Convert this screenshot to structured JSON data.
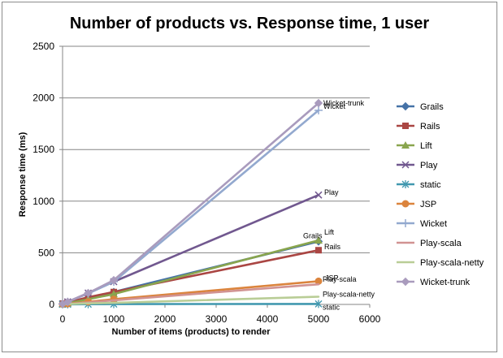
{
  "chart_data": {
    "type": "line",
    "title": "Number of products vs. Response time, 1 user",
    "xlabel": "Number of items (products) to render",
    "ylabel": "Response time (ms)",
    "xlim": [
      0,
      6000
    ],
    "ylim": [
      0,
      2500
    ],
    "x_ticks": [
      0,
      1000,
      2000,
      3000,
      4000,
      5000,
      6000
    ],
    "y_ticks": [
      0,
      500,
      1000,
      1500,
      2000,
      2500
    ],
    "grid": "horizontal major gridlines",
    "legend_position": "right",
    "x": [
      0,
      100,
      500,
      1000,
      5000
    ],
    "series": [
      {
        "name": "Grails",
        "color": "#4572a7",
        "marker": "diamond",
        "values": [
          5,
          15,
          60,
          120,
          610
        ],
        "end_label": "Grails"
      },
      {
        "name": "Rails",
        "color": "#aa4643",
        "marker": "square",
        "values": [
          8,
          20,
          70,
          120,
          525
        ],
        "end_label": "Rails"
      },
      {
        "name": "Lift",
        "color": "#89a54e",
        "marker": "triangle",
        "values": [
          4,
          12,
          50,
          100,
          620
        ],
        "end_label": "Lift"
      },
      {
        "name": "Play",
        "color": "#71588f",
        "marker": "x",
        "values": [
          5,
          25,
          110,
          220,
          1060
        ],
        "end_label": "Play"
      },
      {
        "name": "static",
        "color": "#4198af",
        "marker": "star",
        "values": [
          1,
          1,
          2,
          3,
          5
        ],
        "end_label": "static"
      },
      {
        "name": "JSP",
        "color": "#db843d",
        "marker": "circle",
        "values": [
          2,
          6,
          25,
          50,
          225
        ],
        "end_label": "JSP"
      },
      {
        "name": "Wicket",
        "color": "#93a9cf",
        "marker": "plus",
        "values": [
          5,
          25,
          105,
          220,
          1880
        ],
        "end_label": "Wicket"
      },
      {
        "name": "Play-scala",
        "color": "#d19392",
        "marker": "none",
        "values": [
          2,
          5,
          20,
          40,
          195
        ],
        "end_label": "Play-scala"
      },
      {
        "name": "Play-scala-netty",
        "color": "#b9cd96",
        "marker": "none",
        "values": [
          1,
          3,
          10,
          15,
          75
        ],
        "end_label": "Play-scala-netty"
      },
      {
        "name": "Wicket-trunk",
        "color": "#a99bbd",
        "marker": "diamond",
        "values": [
          5,
          25,
          110,
          235,
          1950
        ],
        "end_label": "Wicket-trunk"
      }
    ]
  }
}
